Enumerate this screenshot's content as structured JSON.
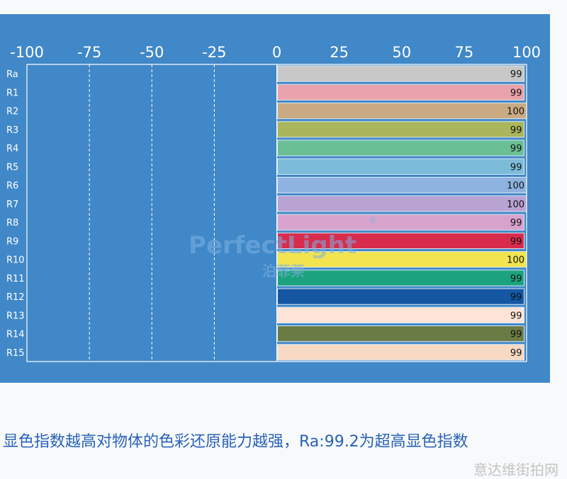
{
  "chart_data": {
    "type": "bar",
    "orientation": "horizontal",
    "xlim": [
      -100,
      100
    ],
    "xticks": [
      "-100",
      "-75",
      "-50",
      "-25",
      "0",
      "25",
      "50",
      "75",
      "100"
    ],
    "categories": [
      "Ra",
      "R1",
      "R2",
      "R3",
      "R4",
      "R5",
      "R6",
      "R7",
      "R8",
      "R9",
      "R10",
      "R11",
      "R12",
      "R13",
      "R14",
      "R15"
    ],
    "values": [
      99,
      99,
      100,
      99,
      99,
      99,
      100,
      100,
      99,
      99,
      100,
      99,
      99,
      99,
      99,
      99
    ],
    "value_labels": [
      "99",
      "99",
      "100",
      "99",
      "99",
      "99",
      "100",
      "100",
      "99",
      "99",
      "100",
      "99",
      "99",
      "99",
      "99",
      "99"
    ],
    "bar_colors": [
      "#c8c8c8",
      "#e8a3ab",
      "#c9aa82",
      "#a9b65b",
      "#6bbf94",
      "#7dbcd8",
      "#8fb3e0",
      "#b9a3d3",
      "#d7a3cd",
      "#d92c4d",
      "#f1e44f",
      "#1aa37c",
      "#1557a3",
      "#fde4d7",
      "#6b7b46",
      "#f8dac4"
    ],
    "panel_color": "#4088c8",
    "grid": "dashed vertical"
  },
  "watermark": {
    "brand": "PerfectLight",
    "registered": "®",
    "cn": "泊菲莱"
  },
  "caption": "显色指数越高对物体的色彩还原能力越强，Ra:99.2为超高显色指数",
  "footer_watermark": "意达维街拍网"
}
